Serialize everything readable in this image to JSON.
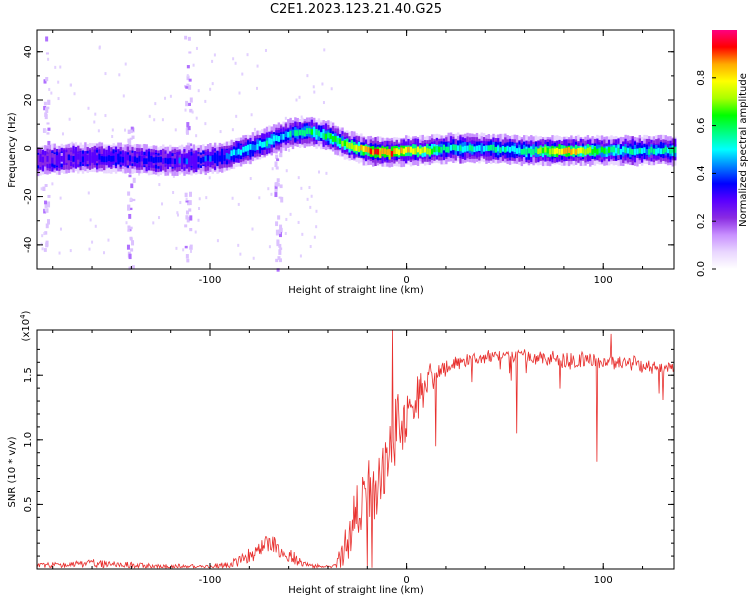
{
  "figure": {
    "title": "C2E1.2023.123.21.40.G25"
  },
  "chart_data": [
    {
      "type": "heatmap",
      "xlabel": "Height of straight line (km)",
      "ylabel": "Frequency (Hz)",
      "xlim": [
        -188,
        136
      ],
      "ylim": [
        -50,
        49
      ],
      "xticks": [
        -100,
        0,
        100
      ],
      "yticks": [
        -40,
        -20,
        0,
        20,
        40
      ],
      "colorbar": {
        "label": "Normalized spectral amplitude",
        "range": [
          0,
          1
        ],
        "ticks": [
          0.0,
          0.2,
          0.4,
          0.6,
          0.8
        ],
        "colors": [
          "#ffffff",
          "#e9d6ff",
          "#c890ff",
          "#8a2be2",
          "#5a00ff",
          "#0000ff",
          "#0080ff",
          "#00ffff",
          "#00ff80",
          "#00ff00",
          "#aaff00",
          "#ffff00",
          "#ffaa00",
          "#ff0000",
          "#ff0080"
        ]
      },
      "ridge": {
        "x": [
          -188,
          -170,
          -150,
          -130,
          -110,
          -95,
          -80,
          -70,
          -60,
          -50,
          -40,
          -30,
          -20,
          -10,
          0,
          10,
          20,
          40,
          60,
          80,
          100,
          120,
          136
        ],
        "y": [
          -5,
          -4,
          -4,
          -5,
          -5,
          -4,
          0,
          3,
          6,
          7,
          5,
          1,
          -1,
          -2,
          -1,
          -1,
          0,
          0,
          -1,
          -1,
          -1,
          -1,
          -1
        ],
        "amplitude": [
          0.25,
          0.3,
          0.35,
          0.35,
          0.35,
          0.4,
          0.5,
          0.5,
          0.5,
          0.55,
          0.6,
          0.7,
          0.85,
          0.9,
          0.8,
          0.7,
          0.55,
          0.5,
          0.55,
          0.85,
          0.6,
          0.5,
          0.55
        ]
      },
      "streaks": [
        {
          "x": -183,
          "ymin": -50,
          "ymax": 49
        },
        {
          "x": -111,
          "ymin": -50,
          "ymax": 49
        },
        {
          "x": -140,
          "ymin": -50,
          "ymax": 10
        },
        {
          "x": -65,
          "ymin": -50,
          "ymax": 10
        }
      ]
    },
    {
      "type": "line",
      "xlabel": "Height of straight line (km)",
      "ylabel": "SNR (10 * v/v)",
      "yscale_label": "(x10",
      "yscale_exp": "4",
      "yscale_close": ")",
      "xlim": [
        -188,
        136
      ],
      "ylim": [
        0,
        1.85
      ],
      "xticks": [
        -100,
        0,
        100
      ],
      "yticks": [
        0.5,
        1.0,
        1.5
      ],
      "color": "#e8312f",
      "envelope": {
        "x": [
          -188,
          -160,
          -130,
          -100,
          -90,
          -80,
          -75,
          -70,
          -60,
          -50,
          -40,
          -36,
          -33,
          -30,
          -28,
          -25,
          -22,
          -20,
          -15,
          -10,
          -5,
          0,
          5,
          10,
          20,
          30,
          40,
          50,
          60,
          70,
          80,
          90,
          100,
          110,
          120,
          130,
          136
        ],
        "y": [
          0.04,
          0.07,
          0.04,
          0.03,
          0.06,
          0.15,
          0.22,
          0.3,
          0.15,
          0.04,
          0.03,
          0.05,
          0.2,
          0.4,
          0.5,
          0.6,
          0.75,
          0.85,
          0.9,
          1.05,
          1.3,
          1.35,
          1.45,
          1.55,
          1.62,
          1.66,
          1.68,
          1.69,
          1.69,
          1.68,
          1.67,
          1.68,
          1.67,
          1.65,
          1.63,
          1.61,
          1.6
        ],
        "noise": [
          0.04,
          0.05,
          0.04,
          0.03,
          0.06,
          0.1,
          0.13,
          0.14,
          0.1,
          0.03,
          0.02,
          0.05,
          0.2,
          0.3,
          0.35,
          0.4,
          0.45,
          0.45,
          0.45,
          0.4,
          0.4,
          0.35,
          0.3,
          0.2,
          0.12,
          0.08,
          0.08,
          0.07,
          0.08,
          0.1,
          0.12,
          0.12,
          0.12,
          0.1,
          0.1,
          0.1,
          0.1
        ]
      },
      "spikes": [
        {
          "x": -7,
          "y": 1.85
        },
        {
          "x": 15,
          "y": 0.95
        },
        {
          "x": 56,
          "y": 1.05
        },
        {
          "x": 97,
          "y": 0.83
        },
        {
          "x": 104,
          "y": 1.82
        },
        {
          "x": -20,
          "y": 0.02
        }
      ]
    }
  ]
}
